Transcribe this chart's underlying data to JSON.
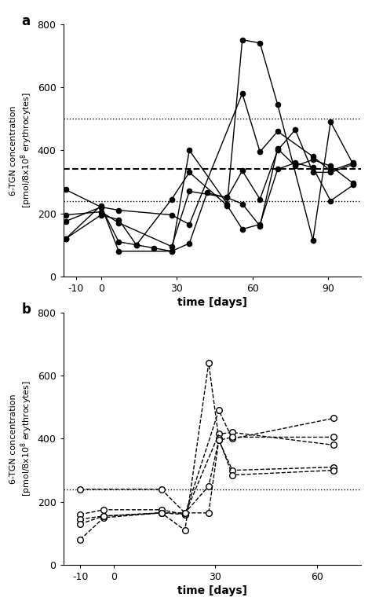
{
  "panel_a": {
    "title": "a",
    "xlabel": "time [days]",
    "ylim": [
      0,
      800
    ],
    "yticks": [
      0,
      200,
      400,
      600,
      800
    ],
    "xlim": [
      -15,
      103
    ],
    "xticks": [
      -10,
      0,
      30,
      60,
      90
    ],
    "xticklabels": [
      "-10",
      "0",
      "30",
      "60",
      "90"
    ],
    "hline_dotted1": 500,
    "hline_dashed": 340,
    "hline_dotted2": 240,
    "patients": [
      {
        "x": [
          -14,
          0,
          7,
          28,
          35,
          56,
          63,
          70,
          84,
          91,
          100
        ],
        "y": [
          275,
          220,
          210,
          195,
          165,
          580,
          395,
          460,
          380,
          335,
          360
        ]
      },
      {
        "x": [
          -14,
          0,
          7,
          28,
          35,
          50,
          56,
          63,
          70,
          77,
          84,
          91,
          100
        ],
        "y": [
          195,
          205,
          170,
          95,
          270,
          250,
          230,
          160,
          405,
          350,
          370,
          350,
          295
        ]
      },
      {
        "x": [
          -14,
          0,
          7,
          14,
          21,
          28,
          35,
          42,
          50,
          56,
          63,
          70,
          77,
          84,
          91,
          100
        ],
        "y": [
          120,
          195,
          180,
          100,
          90,
          80,
          105,
          265,
          250,
          335,
          245,
          400,
          465,
          330,
          330,
          355
        ]
      },
      {
        "x": [
          -14,
          0,
          7,
          14,
          28,
          35,
          50,
          56,
          63,
          70,
          77,
          84,
          91,
          100
        ],
        "y": [
          175,
          220,
          110,
          100,
          245,
          330,
          225,
          150,
          165,
          340,
          360,
          345,
          240,
          290
        ]
      },
      {
        "x": [
          -14,
          0,
          7,
          28,
          35,
          50,
          56,
          63,
          70,
          84,
          91,
          100
        ],
        "y": [
          120,
          225,
          80,
          80,
          400,
          230,
          750,
          740,
          545,
          115,
          490,
          355
        ]
      }
    ]
  },
  "panel_b": {
    "title": "b",
    "xlabel": "time [days]",
    "ylim": [
      0,
      800
    ],
    "yticks": [
      0,
      200,
      400,
      600,
      800
    ],
    "xlim": [
      -15,
      73
    ],
    "xticks": [
      -10,
      0,
      30,
      60
    ],
    "xticklabels": [
      "-10",
      "0",
      "30",
      "60"
    ],
    "hline_dotted": 240,
    "patients": [
      {
        "x": [
          -10,
          -3,
          14,
          21,
          31,
          35,
          65
        ],
        "y": [
          80,
          150,
          165,
          160,
          490,
          400,
          465
        ]
      },
      {
        "x": [
          -10,
          -3,
          14,
          21,
          31,
          35,
          65
        ],
        "y": [
          160,
          175,
          175,
          160,
          415,
          420,
          380
        ]
      },
      {
        "x": [
          -10,
          -3,
          14,
          21,
          28,
          31,
          35,
          65
        ],
        "y": [
          145,
          155,
          165,
          165,
          250,
          395,
          300,
          310
        ]
      },
      {
        "x": [
          -10,
          -3,
          14,
          21,
          28,
          31,
          35,
          65
        ],
        "y": [
          130,
          155,
          165,
          110,
          640,
          400,
          285,
          300
        ]
      },
      {
        "x": [
          -10,
          14,
          21,
          28,
          31,
          35,
          65
        ],
        "y": [
          240,
          240,
          165,
          165,
          395,
          405,
          405
        ]
      }
    ]
  }
}
